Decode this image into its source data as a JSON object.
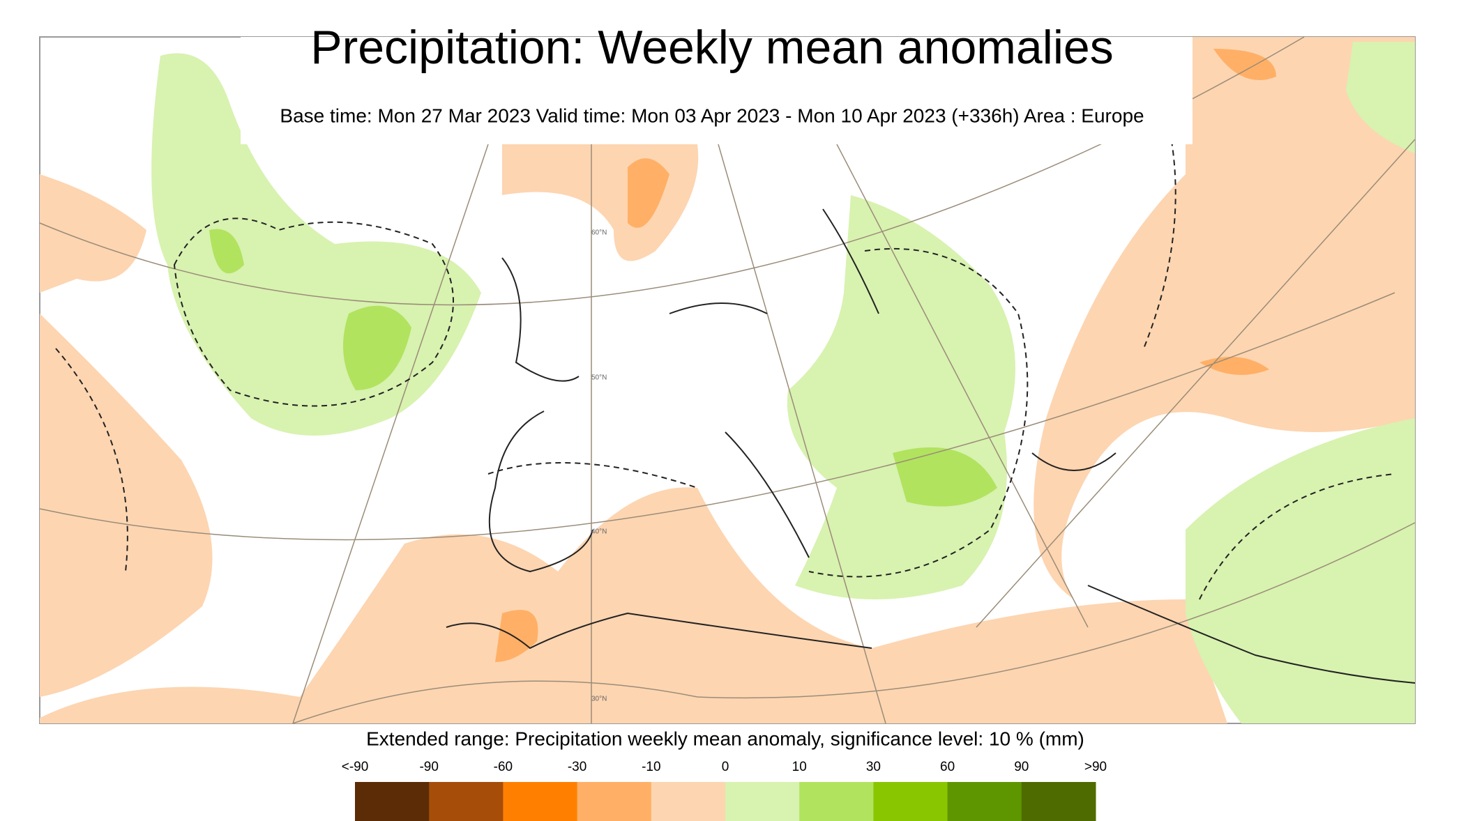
{
  "title": "Precipitation: Weekly mean anomalies",
  "subtitle": "Base time: Mon 27 Mar 2023 Valid time: Mon 03 Apr 2023 - Mon 10 Apr 2023 (+336h) Area : Europe",
  "map": {
    "lat_labels": [
      "60°N",
      "50°N",
      "40°N",
      "30°N"
    ]
  },
  "legend": {
    "caption": "Extended range: Precipitation weekly mean anomaly, significance level: 10 % (mm)",
    "labels": [
      "<-90",
      "-90",
      "-60",
      "-30",
      "-10",
      "0",
      "10",
      "30",
      "60",
      "90",
      ">90"
    ],
    "colors": [
      "#5b2c06",
      "#a64d0a",
      "#ff8000",
      "#ffb066",
      "#fdd5b1",
      "#d8f2b0",
      "#b1e35f",
      "#8ac600",
      "#5e9600",
      "#4e6b00"
    ]
  }
}
